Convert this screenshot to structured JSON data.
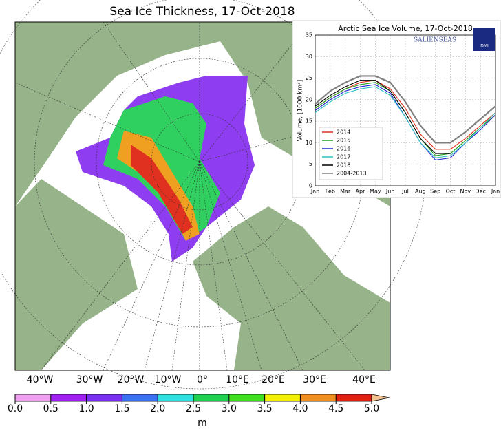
{
  "map": {
    "title": "Sea Ice Thickness, 17-Oct-2018",
    "longitude_labels": [
      "40°W",
      "30°W",
      "20°W",
      "10°W",
      "0°",
      "10°E",
      "20°E",
      "30°E",
      "40°E"
    ],
    "colorbar": {
      "lim": [
        0,
        5
      ],
      "ticks": [
        {
          "value": 0,
          "label": "0.0"
        },
        {
          "value": 0.5,
          "label": "0.5"
        },
        {
          "value": 1,
          "label": "1.0"
        },
        {
          "value": 1.5,
          "label": "1.5"
        },
        {
          "value": 2,
          "label": "2.0"
        },
        {
          "value": 2.5,
          "label": "2.5"
        },
        {
          "value": 3,
          "label": "3.0"
        },
        {
          "value": 3.5,
          "label": "3.5"
        },
        {
          "value": 4,
          "label": "4.0"
        },
        {
          "value": 4.5,
          "label": "4.5"
        },
        {
          "value": 5,
          "label": "5.0"
        }
      ],
      "colors": [
        "#f0a0f0",
        "#a020f0",
        "#7a30f0",
        "#3b70f0",
        "#30e0e0",
        "#20d050",
        "#40e020",
        "#f0f000",
        "#f09020",
        "#e02010"
      ],
      "unit": "m"
    }
  },
  "chart_data": {
    "type": "line",
    "title": "Arctic Sea Ice Volume, 17-Oct-2018",
    "y_label": "Volume, [1000 km³]",
    "logo": "SALIENSEAS",
    "logo2": "DMI",
    "categories": [
      "Jan",
      "Feb",
      "Mar",
      "Apr",
      "May",
      "Jun",
      "Jul",
      "Aug",
      "Sep",
      "Oct",
      "Nov",
      "Dec",
      "Jan"
    ],
    "ylim": [
      0,
      35
    ],
    "yticks": [
      0,
      5,
      10,
      15,
      20,
      25,
      30,
      35
    ],
    "grid": true,
    "legend": "lower left",
    "series": [
      {
        "name": "2014",
        "color": "#e03020",
        "values": [
          18,
          20.5,
          22.5,
          24,
          24.5,
          22.5,
          18,
          12,
          8.5,
          8.5,
          11,
          14,
          17
        ]
      },
      {
        "name": "2015",
        "color": "#20a020",
        "values": [
          18,
          20.5,
          22.5,
          23.5,
          24,
          22,
          17,
          11,
          7,
          7.5,
          10.5,
          13.5,
          16.5
        ]
      },
      {
        "name": "2016",
        "color": "#2020d0",
        "values": [
          17.5,
          20,
          22,
          23,
          23.5,
          21.5,
          16,
          10,
          6,
          6.5,
          10,
          13,
          16.5
        ]
      },
      {
        "name": "2017",
        "color": "#30c0c0",
        "values": [
          17,
          19.5,
          21.5,
          22.5,
          23,
          21,
          16,
          10,
          6.5,
          7,
          10,
          13.5,
          17
        ]
      },
      {
        "name": "2018",
        "color": "#000000",
        "values": [
          18.5,
          21,
          23,
          24.5,
          24.5,
          22,
          17,
          11,
          7.5,
          7.5,
          null,
          null,
          null
        ]
      },
      {
        "name": "2004-2013",
        "color": "#808080",
        "values": [
          19,
          22,
          24,
          25.5,
          25.5,
          24,
          19.5,
          14,
          10,
          10,
          12.5,
          15.5,
          18.5
        ]
      }
    ]
  }
}
